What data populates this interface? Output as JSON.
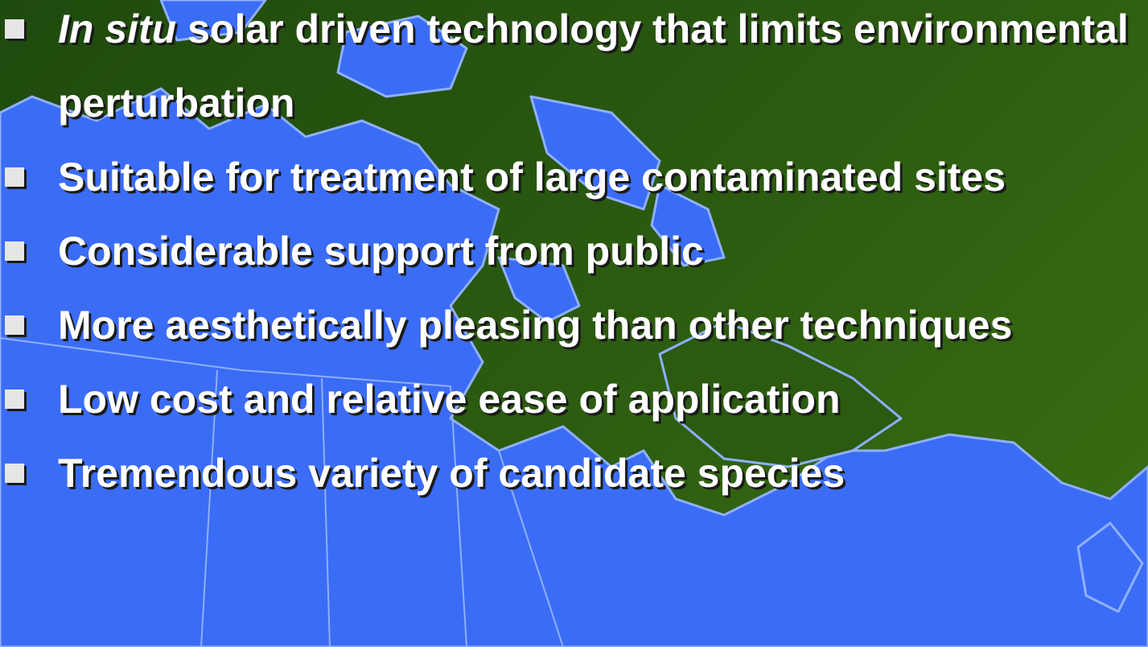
{
  "bullets": [
    {
      "italic": "In situ",
      "text": " solar driven technology that limits environmental perturbation"
    },
    {
      "text": "Suitable for treatment of large contaminated sites"
    },
    {
      "text": "Considerable support from public"
    },
    {
      "text": "More aesthetically pleasing than other techniques"
    },
    {
      "text": "Low cost and relative ease of application"
    },
    {
      "text": "Tremendous variety of candidate species"
    }
  ]
}
